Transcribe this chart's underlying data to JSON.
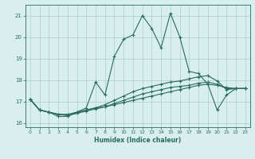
{
  "xlabel": "Humidex (Indice chaleur)",
  "background_color": "#d9efef",
  "grid_color": "#aacfcf",
  "line_color": "#2a6b5e",
  "xlim": [
    -0.5,
    23.5
  ],
  "ylim": [
    15.8,
    21.5
  ],
  "xticks": [
    0,
    1,
    2,
    3,
    4,
    5,
    6,
    7,
    8,
    9,
    10,
    11,
    12,
    13,
    14,
    15,
    16,
    17,
    18,
    19,
    20,
    21,
    22,
    23
  ],
  "yticks": [
    16,
    17,
    18,
    19,
    20,
    21
  ],
  "series": [
    [
      17.1,
      16.6,
      16.5,
      16.3,
      16.3,
      16.5,
      16.7,
      17.9,
      17.3,
      19.1,
      19.9,
      20.1,
      21.0,
      20.4,
      19.5,
      21.1,
      20.0,
      18.4,
      18.3,
      17.8,
      16.6,
      17.3,
      17.6,
      17.6
    ],
    [
      17.1,
      16.6,
      16.5,
      16.4,
      16.4,
      16.5,
      16.6,
      16.7,
      16.75,
      16.85,
      16.95,
      17.05,
      17.15,
      17.25,
      17.35,
      17.45,
      17.55,
      17.65,
      17.75,
      17.8,
      17.75,
      17.65,
      17.6,
      17.6
    ],
    [
      17.1,
      16.6,
      16.5,
      16.4,
      16.35,
      16.45,
      16.55,
      16.65,
      16.75,
      16.9,
      17.05,
      17.2,
      17.35,
      17.45,
      17.55,
      17.65,
      17.7,
      17.75,
      17.85,
      17.9,
      17.8,
      17.6,
      17.6,
      17.6
    ],
    [
      17.1,
      16.6,
      16.5,
      16.4,
      16.35,
      16.45,
      16.6,
      16.7,
      16.85,
      17.05,
      17.25,
      17.45,
      17.6,
      17.7,
      17.8,
      17.9,
      17.95,
      18.05,
      18.15,
      18.2,
      17.95,
      17.55,
      17.6,
      17.6
    ]
  ]
}
